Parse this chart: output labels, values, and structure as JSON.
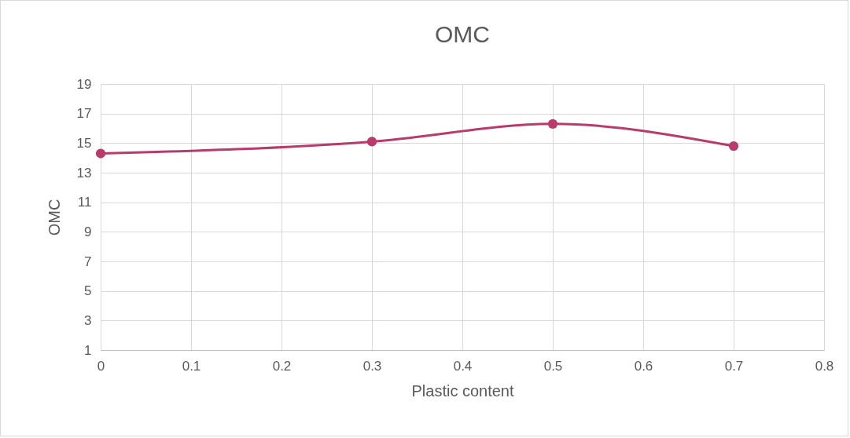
{
  "chart_data": {
    "type": "line",
    "title": "OMC",
    "xlabel": "Plastic content",
    "ylabel": "OMC",
    "x": [
      0,
      0.3,
      0.5,
      0.7
    ],
    "series": [
      {
        "color": "#b83b6b",
        "values": [
          14.3,
          15.1,
          16.3,
          14.8
        ]
      }
    ],
    "xlim": [
      0,
      0.8
    ],
    "xticks": [
      0,
      0.1,
      0.2,
      0.3,
      0.4,
      0.5,
      0.6,
      0.7,
      0.8
    ],
    "ylim": [
      1,
      19
    ],
    "yticks": [
      1,
      3,
      5,
      7,
      9,
      11,
      13,
      15,
      17,
      19
    ],
    "grid": true,
    "marker": "circle",
    "line_style": "solid"
  }
}
